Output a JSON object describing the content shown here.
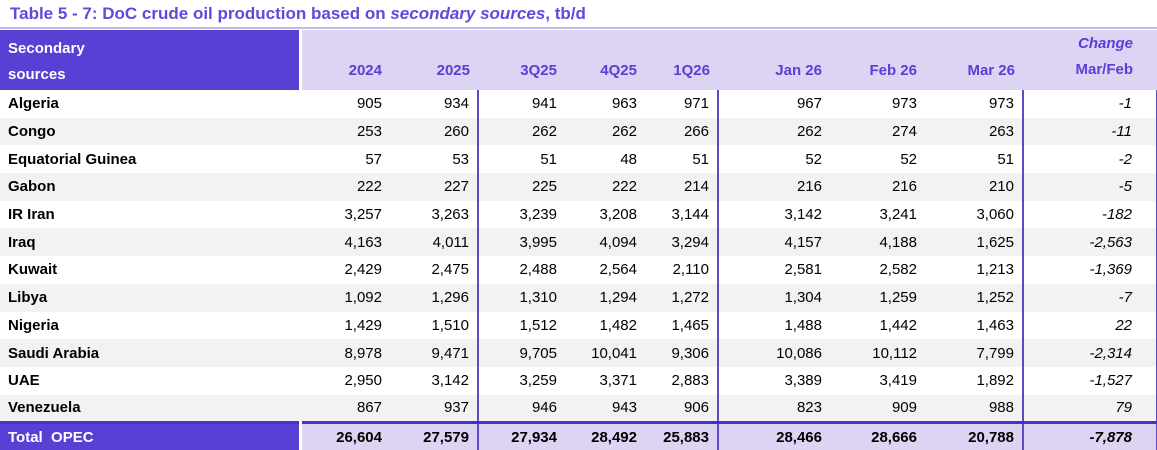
{
  "title": {
    "prefix": "Table 5 - 7: DoC crude oil production based on ",
    "emphasis": "secondary sources",
    "suffix": ", tb/d"
  },
  "table": {
    "header": {
      "label_line1": "Secondary",
      "label_line2": "sources",
      "columns": [
        "2024",
        "2025",
        "3Q25",
        "4Q25",
        "1Q26",
        "Jan 26",
        "Feb 26",
        "Mar 26"
      ],
      "change_line1": "Change",
      "change_line2": "Mar/Feb"
    },
    "rows": [
      {
        "name": "Algeria",
        "values": [
          "905",
          "934",
          "941",
          "963",
          "971",
          "967",
          "973",
          "973"
        ],
        "change": "-1"
      },
      {
        "name": "Congo",
        "values": [
          "253",
          "260",
          "262",
          "262",
          "266",
          "262",
          "274",
          "263"
        ],
        "change": "-11"
      },
      {
        "name": "Equatorial Guinea",
        "values": [
          "57",
          "53",
          "51",
          "48",
          "51",
          "52",
          "52",
          "51"
        ],
        "change": "-2"
      },
      {
        "name": "Gabon",
        "values": [
          "222",
          "227",
          "225",
          "222",
          "214",
          "216",
          "216",
          "210"
        ],
        "change": "-5"
      },
      {
        "name": "IR Iran",
        "values": [
          "3,257",
          "3,263",
          "3,239",
          "3,208",
          "3,144",
          "3,142",
          "3,241",
          "3,060"
        ],
        "change": "-182"
      },
      {
        "name": "Iraq",
        "values": [
          "4,163",
          "4,011",
          "3,995",
          "4,094",
          "3,294",
          "4,157",
          "4,188",
          "1,625"
        ],
        "change": "-2,563"
      },
      {
        "name": "Kuwait",
        "values": [
          "2,429",
          "2,475",
          "2,488",
          "2,564",
          "2,110",
          "2,581",
          "2,582",
          "1,213"
        ],
        "change": "-1,369"
      },
      {
        "name": "Libya",
        "values": [
          "1,092",
          "1,296",
          "1,310",
          "1,294",
          "1,272",
          "1,304",
          "1,259",
          "1,252"
        ],
        "change": "-7"
      },
      {
        "name": "Nigeria",
        "values": [
          "1,429",
          "1,510",
          "1,512",
          "1,482",
          "1,465",
          "1,488",
          "1,442",
          "1,463"
        ],
        "change": "22"
      },
      {
        "name": "Saudi Arabia",
        "values": [
          "8,978",
          "9,471",
          "9,705",
          "10,041",
          "9,306",
          "10,086",
          "10,112",
          "7,799"
        ],
        "change": "-2,314"
      },
      {
        "name": "UAE",
        "values": [
          "2,950",
          "3,142",
          "3,259",
          "3,371",
          "2,883",
          "3,389",
          "3,419",
          "1,892"
        ],
        "change": "-1,527"
      },
      {
        "name": "Venezuela",
        "values": [
          "867",
          "937",
          "946",
          "943",
          "906",
          "823",
          "909",
          "988"
        ],
        "change": "79"
      }
    ],
    "total": {
      "name": "Total  OPEC",
      "values": [
        "26,604",
        "27,579",
        "27,934",
        "28,492",
        "25,883",
        "28,466",
        "28,666",
        "20,788"
      ],
      "change": "-7,878"
    }
  },
  "colors": {
    "title_text": "#6745DF",
    "title_rule": "#C3BAEA",
    "header_dark_bg": "#5840D4",
    "header_light_bg": "#DCD4F2",
    "header_text": "#5A3ED6",
    "stripe": "#F2F2F2",
    "column_divider": "#5C4BC8",
    "total_top_border": "#4B2FC6"
  }
}
